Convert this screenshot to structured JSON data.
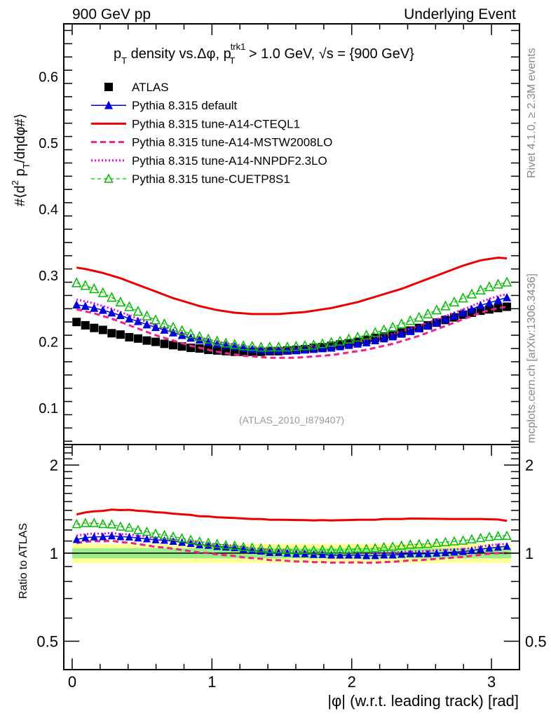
{
  "header": {
    "left": "900 GeV pp",
    "right": "Underlying Event"
  },
  "side_labels": {
    "rivet": "Rivet 4.1.0, ≥ 2.3M events",
    "mcplots": "mcplots.cern.ch [arXiv:1306.3436]"
  },
  "chart_data": [
    {
      "type": "scatter",
      "panel": "main",
      "title": "p_T density vs.Δφ, p_T^{trk1} > 1.0 GeV, √s = {900 GeV}",
      "title_parts": {
        "p": "p",
        "T": "T",
        "mid": " density vs.Δφ, ",
        "trk1": "trk1",
        "rest": " > 1.0 GeV, ",
        "sqrt": "√",
        "s_eq": "s = {900 GeV}"
      },
      "xlabel": "|φ| (w.r.t. leading track) [rad]",
      "ylabel": "#⟨d² p_T/dηdφ#⟩",
      "ylabel_parts": {
        "a": "#⟨d",
        "sup": "2",
        "b": " p",
        "sub": "T",
        "c": "/dηdφ#⟩"
      },
      "watermark": "(ATLAS_2010_I879407)",
      "xlim": [
        -0.06,
        3.2
      ],
      "ylim": [
        0.045,
        0.68
      ],
      "yticks": [
        0.1,
        0.2,
        0.3,
        0.4,
        0.5,
        0.6
      ],
      "ytick_labels": [
        "0.1",
        "0.2",
        "0.3",
        "0.4",
        "0.5",
        "0.6"
      ],
      "xticks": [
        0,
        1,
        2,
        3
      ],
      "xtick_labels": [
        "0",
        "1",
        "2",
        "3"
      ],
      "grid": false,
      "legend_position": "top-left",
      "n_bins": 50,
      "x_range": [
        0,
        3.14159
      ],
      "series": [
        {
          "name": "ATLAS",
          "color": "#000000",
          "style": "marker-square",
          "values": [
            0.23,
            0.225,
            0.221,
            0.218,
            0.213,
            0.211,
            0.207,
            0.205,
            0.202,
            0.2,
            0.197,
            0.195,
            0.193,
            0.191,
            0.19,
            0.188,
            0.187,
            0.186,
            0.185,
            0.185,
            0.185,
            0.185,
            0.186,
            0.186,
            0.187,
            0.188,
            0.189,
            0.191,
            0.192,
            0.194,
            0.196,
            0.198,
            0.2,
            0.203,
            0.206,
            0.208,
            0.211,
            0.214,
            0.217,
            0.221,
            0.225,
            0.229,
            0.233,
            0.237,
            0.241,
            0.244,
            0.247,
            0.249,
            0.251,
            0.253
          ]
        },
        {
          "name": "Pythia 8.315 default",
          "color": "#0000dd",
          "style": "line-triangle",
          "values": [
            0.256,
            0.254,
            0.251,
            0.248,
            0.244,
            0.24,
            0.235,
            0.231,
            0.226,
            0.222,
            0.218,
            0.214,
            0.21,
            0.206,
            0.203,
            0.2,
            0.197,
            0.195,
            0.193,
            0.191,
            0.189,
            0.188,
            0.187,
            0.187,
            0.187,
            0.187,
            0.188,
            0.189,
            0.19,
            0.191,
            0.193,
            0.195,
            0.197,
            0.199,
            0.202,
            0.205,
            0.208,
            0.212,
            0.216,
            0.22,
            0.224,
            0.229,
            0.234,
            0.239,
            0.244,
            0.249,
            0.255,
            0.259,
            0.263,
            0.267
          ]
        },
        {
          "name": "Pythia 8.315 tune-A14-CTEQL1",
          "color": "#ee0000",
          "style": "line-solid",
          "values": [
            0.312,
            0.31,
            0.307,
            0.304,
            0.3,
            0.296,
            0.291,
            0.286,
            0.281,
            0.276,
            0.271,
            0.266,
            0.262,
            0.258,
            0.254,
            0.251,
            0.248,
            0.246,
            0.244,
            0.243,
            0.242,
            0.242,
            0.242,
            0.242,
            0.243,
            0.244,
            0.245,
            0.247,
            0.249,
            0.251,
            0.254,
            0.257,
            0.26,
            0.264,
            0.268,
            0.272,
            0.276,
            0.28,
            0.285,
            0.29,
            0.295,
            0.3,
            0.305,
            0.31,
            0.315,
            0.319,
            0.323,
            0.325,
            0.327,
            0.326
          ]
        },
        {
          "name": "Pythia 8.315 tune-A14-MSTW2008LO",
          "color": "#ee2288",
          "style": "line-dashed",
          "values": [
            0.249,
            0.246,
            0.243,
            0.239,
            0.235,
            0.23,
            0.225,
            0.22,
            0.215,
            0.21,
            0.206,
            0.202,
            0.198,
            0.194,
            0.191,
            0.188,
            0.185,
            0.183,
            0.181,
            0.179,
            0.178,
            0.177,
            0.176,
            0.176,
            0.176,
            0.176,
            0.177,
            0.178,
            0.179,
            0.18,
            0.182,
            0.184,
            0.186,
            0.188,
            0.191,
            0.194,
            0.197,
            0.201,
            0.205,
            0.209,
            0.214,
            0.219,
            0.224,
            0.229,
            0.234,
            0.239,
            0.244,
            0.248,
            0.251,
            0.253
          ]
        },
        {
          "name": "Pythia 8.315 tune-A14-NNPDF2.3LO",
          "color": "#ee00ee",
          "style": "line-dotted",
          "values": [
            0.264,
            0.261,
            0.258,
            0.254,
            0.25,
            0.245,
            0.24,
            0.235,
            0.23,
            0.225,
            0.221,
            0.217,
            0.213,
            0.209,
            0.206,
            0.203,
            0.2,
            0.198,
            0.196,
            0.194,
            0.192,
            0.191,
            0.19,
            0.19,
            0.19,
            0.19,
            0.191,
            0.192,
            0.193,
            0.194,
            0.196,
            0.198,
            0.2,
            0.203,
            0.206,
            0.209,
            0.212,
            0.216,
            0.22,
            0.224,
            0.229,
            0.234,
            0.239,
            0.244,
            0.249,
            0.254,
            0.26,
            0.265,
            0.269,
            0.272
          ]
        },
        {
          "name": "Pythia 8.315 tune-CUETP8S1",
          "color": "#00bb00",
          "style": "dashed-open-triangle",
          "values": [
            0.289,
            0.285,
            0.28,
            0.274,
            0.267,
            0.26,
            0.253,
            0.246,
            0.239,
            0.233,
            0.227,
            0.222,
            0.217,
            0.212,
            0.208,
            0.204,
            0.201,
            0.198,
            0.196,
            0.194,
            0.193,
            0.192,
            0.192,
            0.192,
            0.192,
            0.193,
            0.194,
            0.195,
            0.197,
            0.199,
            0.201,
            0.204,
            0.207,
            0.21,
            0.214,
            0.218,
            0.222,
            0.227,
            0.232,
            0.237,
            0.242,
            0.248,
            0.254,
            0.26,
            0.266,
            0.272,
            0.278,
            0.283,
            0.287,
            0.29
          ]
        }
      ]
    },
    {
      "type": "line",
      "panel": "ratio",
      "ylabel": "Ratio to ATLAS",
      "yscale": "log",
      "ylim": [
        0.4,
        2.35
      ],
      "yticks": [
        0.5,
        1,
        2
      ],
      "ytick_labels": [
        "0.5",
        "1",
        "2"
      ],
      "xticks": [
        0,
        1,
        2,
        3
      ],
      "xtick_labels": [
        "0",
        "1",
        "2",
        "3"
      ],
      "reference": 1,
      "band_stat": 0.04,
      "band_total": 0.075,
      "band_colors": {
        "inner": "#99ee88",
        "outer": "#ffff99"
      },
      "note": "Ratio series derived as MC / ATLAS from main-panel values"
    }
  ]
}
